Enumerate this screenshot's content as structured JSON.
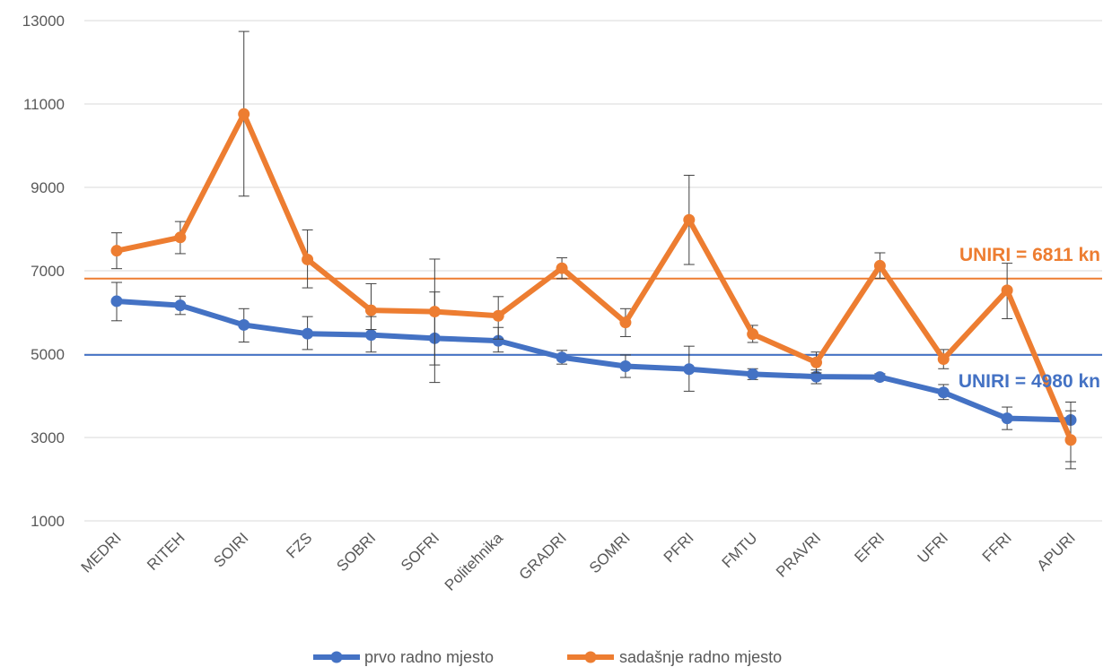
{
  "chart_data": {
    "type": "line",
    "categories": [
      "MEDRI",
      "RITEH",
      "SOIRI",
      "FZS",
      "SOBRI",
      "SOFRI",
      "Politehnika",
      "GRADRI",
      "SOMRI",
      "PFRI",
      "FMTU",
      "PRAVRI",
      "EFRI",
      "UFRI",
      "FFRI",
      "APURI"
    ],
    "ylim": [
      1000,
      13000
    ],
    "yticks": [
      1000,
      3000,
      5000,
      7000,
      9000,
      11000,
      13000
    ],
    "grid": true,
    "legend_position": "bottom",
    "series": [
      {
        "name": "prvo radno mjesto",
        "color": "#4472c4",
        "values": [
          6270,
          6170,
          5700,
          5490,
          5460,
          5380,
          5320,
          4920,
          4710,
          4640,
          4520,
          4460,
          4450,
          4080,
          3460,
          3420
        ],
        "error_low": [
          5800,
          5950,
          5290,
          5110,
          5050,
          4740,
          5050,
          4760,
          4440,
          4110,
          4390,
          4290,
          4370,
          3910,
          3190,
          2420
        ],
        "error_high": [
          6720,
          6390,
          6090,
          5900,
          5900,
          6490,
          5640,
          5090,
          4980,
          5190,
          4650,
          4620,
          4530,
          4270,
          3730,
          3850
        ]
      },
      {
        "name": "sadašnje radno mjesto",
        "color": "#ed7d31",
        "values": [
          7480,
          7800,
          10760,
          7270,
          6050,
          6020,
          5920,
          7060,
          5760,
          8220,
          5480,
          4800,
          7120,
          4880,
          6530,
          2940
        ],
        "error_low": [
          7050,
          7410,
          8790,
          6590,
          5590,
          4320,
          5360,
          6810,
          5420,
          7150,
          5280,
          4550,
          6820,
          4650,
          5850,
          2250
        ],
        "error_high": [
          7910,
          8180,
          12740,
          7980,
          6690,
          7280,
          6380,
          7310,
          6090,
          9290,
          5690,
          5050,
          7430,
          5110,
          7180,
          3640
        ]
      }
    ],
    "reference_lines": [
      {
        "label": "UNIRI = 6811 kn",
        "value": 6811,
        "color": "#ed7d31"
      },
      {
        "label": "UNIRI = 4980 kn",
        "value": 4980,
        "color": "#4472c4"
      }
    ]
  }
}
